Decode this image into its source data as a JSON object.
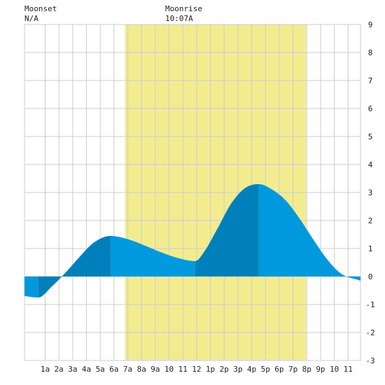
{
  "header": {
    "moonset_label": "Moonset",
    "moonset_value": "N/A",
    "moonrise_label": "Moonrise",
    "moonrise_value": "10:07A"
  },
  "colors": {
    "background": "#ffffff",
    "plot_background": "#ffffff",
    "grid": "#cccccc",
    "daylight": "#f2ec8f",
    "tide_light": "#0099dd",
    "tide_dark": "#0080bb",
    "text": "#222222"
  },
  "chart_data": {
    "type": "area",
    "title": "",
    "xlabel": "",
    "ylabel": "",
    "xlim": [
      -0.5,
      23.9
    ],
    "ylim": [
      -3,
      9
    ],
    "x_ticks": [
      {
        "x": 1,
        "label": "1a"
      },
      {
        "x": 2,
        "label": "2a"
      },
      {
        "x": 3,
        "label": "3a"
      },
      {
        "x": 4,
        "label": "4a"
      },
      {
        "x": 5,
        "label": "5a"
      },
      {
        "x": 6,
        "label": "6a"
      },
      {
        "x": 7,
        "label": "7a"
      },
      {
        "x": 8,
        "label": "8a"
      },
      {
        "x": 9,
        "label": "9a"
      },
      {
        "x": 10,
        "label": "10"
      },
      {
        "x": 11,
        "label": "11"
      },
      {
        "x": 12,
        "label": "12"
      },
      {
        "x": 13,
        "label": "1p"
      },
      {
        "x": 14,
        "label": "2p"
      },
      {
        "x": 15,
        "label": "3p"
      },
      {
        "x": 16,
        "label": "4p"
      },
      {
        "x": 17,
        "label": "5p"
      },
      {
        "x": 18,
        "label": "6p"
      },
      {
        "x": 19,
        "label": "7p"
      },
      {
        "x": 20,
        "label": "8p"
      },
      {
        "x": 21,
        "label": "9p"
      },
      {
        "x": 22,
        "label": "10"
      },
      {
        "x": 23,
        "label": "11"
      }
    ],
    "y_ticks": [
      -3,
      -2,
      -1,
      0,
      1,
      2,
      3,
      4,
      5,
      6,
      7,
      8,
      9
    ],
    "daylight": {
      "start": 6.8,
      "end": 19.95
    },
    "tide_extremes": [
      {
        "time": 0.5,
        "height": -0.75,
        "type": "low"
      },
      {
        "time": 5.75,
        "height": 1.45,
        "type": "high"
      },
      {
        "time": 11.9,
        "height": 0.55,
        "type": "low"
      },
      {
        "time": 16.5,
        "height": 3.3,
        "type": "high"
      },
      {
        "time": 23.9,
        "height": -0.15,
        "type": "end"
      }
    ],
    "tide_series": {
      "name": "",
      "x": [
        -0.5,
        0.5,
        1.5,
        2.5,
        3.5,
        4.5,
        5.75,
        6.5,
        7.5,
        8.5,
        9.5,
        10.5,
        11.9,
        12.5,
        13.5,
        14.5,
        15.5,
        16.5,
        17.5,
        18.5,
        19.5,
        20.5,
        21.5,
        22.5,
        23.9
      ],
      "y": [
        -0.7,
        -0.75,
        -0.35,
        0.15,
        0.7,
        1.2,
        1.45,
        1.4,
        1.25,
        1.05,
        0.85,
        0.68,
        0.55,
        0.85,
        1.7,
        2.6,
        3.15,
        3.3,
        3.1,
        2.7,
        2.05,
        1.3,
        0.6,
        0.1,
        -0.15
      ]
    },
    "shaded_bands": [
      {
        "from": -0.5,
        "to": 0.5,
        "shade": "light"
      },
      {
        "from": 0.5,
        "to": 5.75,
        "shade": "dark"
      },
      {
        "from": 5.75,
        "to": 11.9,
        "shade": "light"
      },
      {
        "from": 11.9,
        "to": 16.5,
        "shade": "dark"
      },
      {
        "from": 16.5,
        "to": 23.9,
        "shade": "light"
      }
    ],
    "grid": true,
    "legend": "none"
  }
}
